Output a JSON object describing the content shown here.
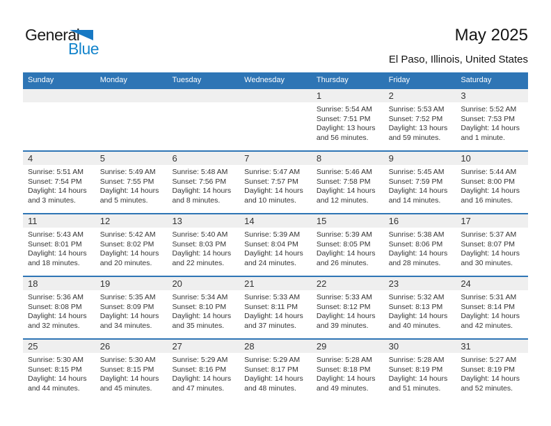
{
  "colors": {
    "header_blue": "#2E75B5",
    "week_divider_blue": "#2E75B5",
    "day_strip_gray": "#EFEFEF",
    "logo_text_blue": "#1585CC",
    "logo_triangle_blue": "#1779C4",
    "body_text": "#333333"
  },
  "logo": {
    "line1": "General",
    "line2": "Blue"
  },
  "header": {
    "title": "May 2025",
    "subtitle": "El Paso, Illinois, United States"
  },
  "calendar": {
    "weekdays": [
      "Sunday",
      "Monday",
      "Tuesday",
      "Wednesday",
      "Thursday",
      "Friday",
      "Saturday"
    ],
    "weeks": [
      [
        null,
        null,
        null,
        null,
        {
          "day": 1,
          "sunrise": "Sunrise: 5:54 AM",
          "sunset": "Sunset: 7:51 PM",
          "daylight": "Daylight: 13 hours and 56 minutes."
        },
        {
          "day": 2,
          "sunrise": "Sunrise: 5:53 AM",
          "sunset": "Sunset: 7:52 PM",
          "daylight": "Daylight: 13 hours and 59 minutes."
        },
        {
          "day": 3,
          "sunrise": "Sunrise: 5:52 AM",
          "sunset": "Sunset: 7:53 PM",
          "daylight": "Daylight: 14 hours and 1 minute."
        }
      ],
      [
        {
          "day": 4,
          "sunrise": "Sunrise: 5:51 AM",
          "sunset": "Sunset: 7:54 PM",
          "daylight": "Daylight: 14 hours and 3 minutes."
        },
        {
          "day": 5,
          "sunrise": "Sunrise: 5:49 AM",
          "sunset": "Sunset: 7:55 PM",
          "daylight": "Daylight: 14 hours and 5 minutes."
        },
        {
          "day": 6,
          "sunrise": "Sunrise: 5:48 AM",
          "sunset": "Sunset: 7:56 PM",
          "daylight": "Daylight: 14 hours and 8 minutes."
        },
        {
          "day": 7,
          "sunrise": "Sunrise: 5:47 AM",
          "sunset": "Sunset: 7:57 PM",
          "daylight": "Daylight: 14 hours and 10 minutes."
        },
        {
          "day": 8,
          "sunrise": "Sunrise: 5:46 AM",
          "sunset": "Sunset: 7:58 PM",
          "daylight": "Daylight: 14 hours and 12 minutes."
        },
        {
          "day": 9,
          "sunrise": "Sunrise: 5:45 AM",
          "sunset": "Sunset: 7:59 PM",
          "daylight": "Daylight: 14 hours and 14 minutes."
        },
        {
          "day": 10,
          "sunrise": "Sunrise: 5:44 AM",
          "sunset": "Sunset: 8:00 PM",
          "daylight": "Daylight: 14 hours and 16 minutes."
        }
      ],
      [
        {
          "day": 11,
          "sunrise": "Sunrise: 5:43 AM",
          "sunset": "Sunset: 8:01 PM",
          "daylight": "Daylight: 14 hours and 18 minutes."
        },
        {
          "day": 12,
          "sunrise": "Sunrise: 5:42 AM",
          "sunset": "Sunset: 8:02 PM",
          "daylight": "Daylight: 14 hours and 20 minutes."
        },
        {
          "day": 13,
          "sunrise": "Sunrise: 5:40 AM",
          "sunset": "Sunset: 8:03 PM",
          "daylight": "Daylight: 14 hours and 22 minutes."
        },
        {
          "day": 14,
          "sunrise": "Sunrise: 5:39 AM",
          "sunset": "Sunset: 8:04 PM",
          "daylight": "Daylight: 14 hours and 24 minutes."
        },
        {
          "day": 15,
          "sunrise": "Sunrise: 5:39 AM",
          "sunset": "Sunset: 8:05 PM",
          "daylight": "Daylight: 14 hours and 26 minutes."
        },
        {
          "day": 16,
          "sunrise": "Sunrise: 5:38 AM",
          "sunset": "Sunset: 8:06 PM",
          "daylight": "Daylight: 14 hours and 28 minutes."
        },
        {
          "day": 17,
          "sunrise": "Sunrise: 5:37 AM",
          "sunset": "Sunset: 8:07 PM",
          "daylight": "Daylight: 14 hours and 30 minutes."
        }
      ],
      [
        {
          "day": 18,
          "sunrise": "Sunrise: 5:36 AM",
          "sunset": "Sunset: 8:08 PM",
          "daylight": "Daylight: 14 hours and 32 minutes."
        },
        {
          "day": 19,
          "sunrise": "Sunrise: 5:35 AM",
          "sunset": "Sunset: 8:09 PM",
          "daylight": "Daylight: 14 hours and 34 minutes."
        },
        {
          "day": 20,
          "sunrise": "Sunrise: 5:34 AM",
          "sunset": "Sunset: 8:10 PM",
          "daylight": "Daylight: 14 hours and 35 minutes."
        },
        {
          "day": 21,
          "sunrise": "Sunrise: 5:33 AM",
          "sunset": "Sunset: 8:11 PM",
          "daylight": "Daylight: 14 hours and 37 minutes."
        },
        {
          "day": 22,
          "sunrise": "Sunrise: 5:33 AM",
          "sunset": "Sunset: 8:12 PM",
          "daylight": "Daylight: 14 hours and 39 minutes."
        },
        {
          "day": 23,
          "sunrise": "Sunrise: 5:32 AM",
          "sunset": "Sunset: 8:13 PM",
          "daylight": "Daylight: 14 hours and 40 minutes."
        },
        {
          "day": 24,
          "sunrise": "Sunrise: 5:31 AM",
          "sunset": "Sunset: 8:14 PM",
          "daylight": "Daylight: 14 hours and 42 minutes."
        }
      ],
      [
        {
          "day": 25,
          "sunrise": "Sunrise: 5:30 AM",
          "sunset": "Sunset: 8:15 PM",
          "daylight": "Daylight: 14 hours and 44 minutes."
        },
        {
          "day": 26,
          "sunrise": "Sunrise: 5:30 AM",
          "sunset": "Sunset: 8:15 PM",
          "daylight": "Daylight: 14 hours and 45 minutes."
        },
        {
          "day": 27,
          "sunrise": "Sunrise: 5:29 AM",
          "sunset": "Sunset: 8:16 PM",
          "daylight": "Daylight: 14 hours and 47 minutes."
        },
        {
          "day": 28,
          "sunrise": "Sunrise: 5:29 AM",
          "sunset": "Sunset: 8:17 PM",
          "daylight": "Daylight: 14 hours and 48 minutes."
        },
        {
          "day": 29,
          "sunrise": "Sunrise: 5:28 AM",
          "sunset": "Sunset: 8:18 PM",
          "daylight": "Daylight: 14 hours and 49 minutes."
        },
        {
          "day": 30,
          "sunrise": "Sunrise: 5:28 AM",
          "sunset": "Sunset: 8:19 PM",
          "daylight": "Daylight: 14 hours and 51 minutes."
        },
        {
          "day": 31,
          "sunrise": "Sunrise: 5:27 AM",
          "sunset": "Sunset: 8:19 PM",
          "daylight": "Daylight: 14 hours and 52 minutes."
        }
      ]
    ]
  }
}
